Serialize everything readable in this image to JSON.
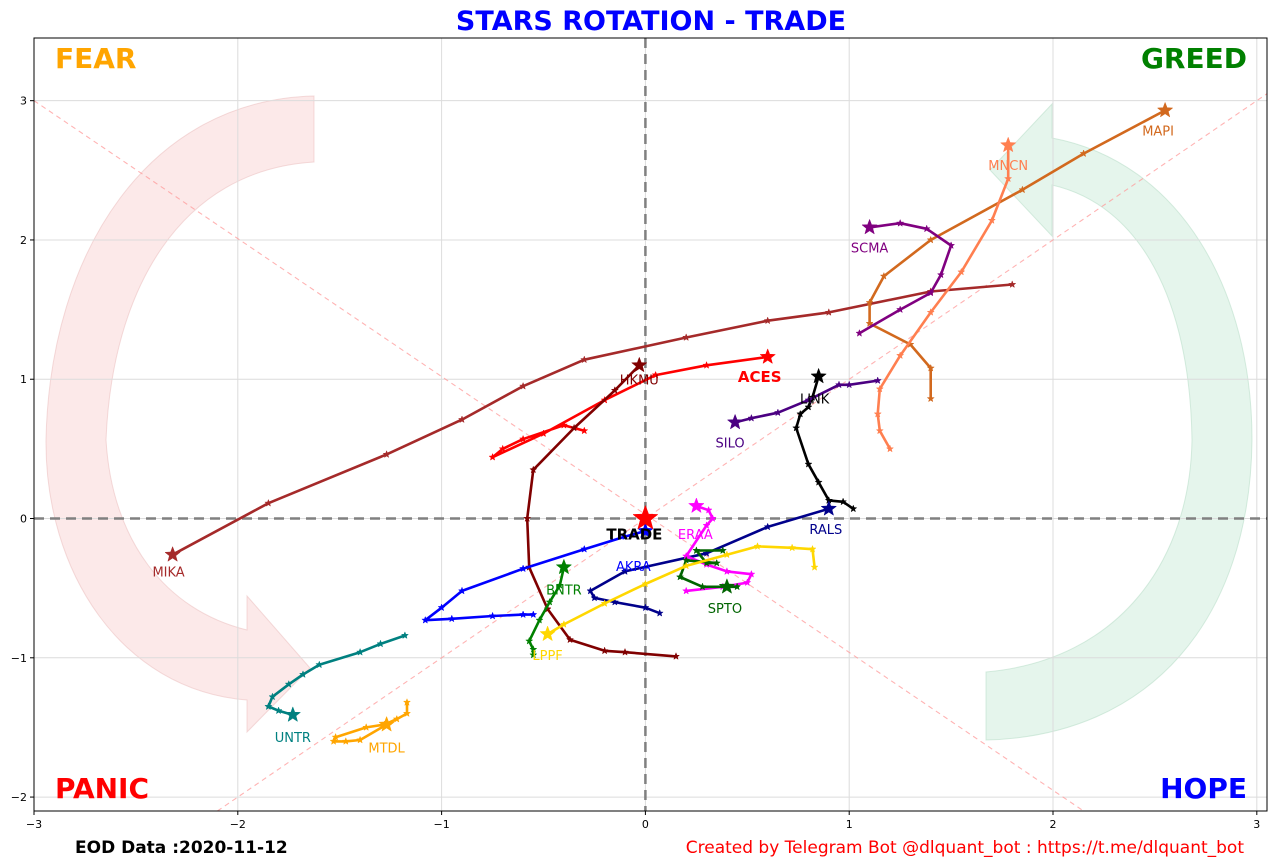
{
  "chart_data": {
    "type": "line",
    "title": "STARS ROTATION - TRADE",
    "xlim": [
      -3,
      3.05
    ],
    "ylim": [
      -2.1,
      3.45
    ],
    "x_ticks": [
      -3,
      -2,
      -1,
      0,
      1,
      2,
      3
    ],
    "y_ticks": [
      -2,
      -1,
      0,
      1,
      2,
      3
    ],
    "grid": true,
    "quadrants": {
      "top_left": "FEAR",
      "top_right": "GREED",
      "bottom_left": "PANIC",
      "bottom_right": "HOPE"
    },
    "center_label": "TRADE",
    "series": [
      {
        "name": "MIKA",
        "color": "#a52a2a",
        "points": [
          [
            1.8,
            1.68
          ],
          [
            1.4,
            1.63
          ],
          [
            0.9,
            1.48
          ],
          [
            0.6,
            1.42
          ],
          [
            0.2,
            1.3
          ],
          [
            -0.3,
            1.14
          ],
          [
            -0.6,
            0.95
          ],
          [
            -0.9,
            0.71
          ],
          [
            -1.27,
            0.46
          ],
          [
            -1.85,
            0.11
          ],
          [
            -2.32,
            -0.26
          ]
        ]
      },
      {
        "name": "MAPI",
        "color": "#d2691e",
        "points": [
          [
            1.4,
            0.86
          ],
          [
            1.4,
            1.08
          ],
          [
            1.3,
            1.25
          ],
          [
            1.1,
            1.4
          ],
          [
            1.1,
            1.55
          ],
          [
            1.17,
            1.74
          ],
          [
            1.4,
            2.0
          ],
          [
            1.85,
            2.36
          ],
          [
            2.15,
            2.62
          ],
          [
            2.55,
            2.93
          ]
        ]
      },
      {
        "name": "MNCN",
        "color": "#ff7f50",
        "points": [
          [
            1.2,
            0.5
          ],
          [
            1.15,
            0.63
          ],
          [
            1.14,
            0.75
          ],
          [
            1.15,
            0.93
          ],
          [
            1.25,
            1.17
          ],
          [
            1.4,
            1.48
          ],
          [
            1.55,
            1.77
          ],
          [
            1.7,
            2.14
          ],
          [
            1.78,
            2.44
          ],
          [
            1.78,
            2.68
          ]
        ]
      },
      {
        "name": "SCMA",
        "color": "#800080",
        "points": [
          [
            1.05,
            1.33
          ],
          [
            1.25,
            1.5
          ],
          [
            1.4,
            1.62
          ],
          [
            1.45,
            1.75
          ],
          [
            1.5,
            1.96
          ],
          [
            1.38,
            2.08
          ],
          [
            1.25,
            2.12
          ],
          [
            1.1,
            2.09
          ]
        ]
      },
      {
        "name": "ACES",
        "color": "#ff0000",
        "points": [
          [
            -0.3,
            0.63
          ],
          [
            -0.4,
            0.67
          ],
          [
            -0.6,
            0.57
          ],
          [
            -0.7,
            0.5
          ],
          [
            -0.75,
            0.44
          ],
          [
            -0.5,
            0.61
          ],
          [
            -0.2,
            0.85
          ],
          [
            0.05,
            1.03
          ],
          [
            0.3,
            1.1
          ],
          [
            0.6,
            1.16
          ]
        ]
      },
      {
        "name": "HKMU",
        "color": "#800000",
        "points": [
          [
            0.15,
            -0.99
          ],
          [
            -0.1,
            -0.96
          ],
          [
            -0.2,
            -0.95
          ],
          [
            -0.37,
            -0.87
          ],
          [
            -0.48,
            -0.65
          ],
          [
            -0.57,
            -0.35
          ],
          [
            -0.58,
            0.0
          ],
          [
            -0.55,
            0.35
          ],
          [
            -0.35,
            0.65
          ],
          [
            -0.15,
            0.92
          ],
          [
            -0.03,
            1.1
          ]
        ]
      },
      {
        "name": "LINK",
        "color": "#000000",
        "points": [
          [
            1.02,
            0.07
          ],
          [
            0.97,
            0.12
          ],
          [
            0.9,
            0.13
          ],
          [
            0.85,
            0.26
          ],
          [
            0.8,
            0.39
          ],
          [
            0.74,
            0.65
          ],
          [
            0.76,
            0.75
          ],
          [
            0.8,
            0.8
          ],
          [
            0.82,
            0.87
          ],
          [
            0.85,
            1.02
          ]
        ]
      },
      {
        "name": "SILO",
        "color": "#4b0082",
        "points": [
          [
            1.14,
            0.99
          ],
          [
            1.0,
            0.96
          ],
          [
            0.95,
            0.96
          ],
          [
            0.8,
            0.85
          ],
          [
            0.65,
            0.76
          ],
          [
            0.52,
            0.72
          ],
          [
            0.44,
            0.69
          ]
        ]
      },
      {
        "name": "RALS",
        "color": "#00008b",
        "points": [
          [
            0.07,
            -0.68
          ],
          [
            0.0,
            -0.64
          ],
          [
            -0.15,
            -0.6
          ],
          [
            -0.25,
            -0.57
          ],
          [
            -0.27,
            -0.52
          ],
          [
            -0.1,
            -0.38
          ],
          [
            0.3,
            -0.25
          ],
          [
            0.6,
            -0.06
          ],
          [
            0.9,
            0.07
          ]
        ]
      },
      {
        "name": "AKRA",
        "color": "#0000ff",
        "points": [
          [
            -0.55,
            -0.69
          ],
          [
            -0.6,
            -0.69
          ],
          [
            -0.75,
            -0.7
          ],
          [
            -0.95,
            -0.72
          ],
          [
            -1.08,
            -0.73
          ],
          [
            -1.0,
            -0.64
          ],
          [
            -0.9,
            -0.52
          ],
          [
            -0.6,
            -0.36
          ],
          [
            -0.3,
            -0.22
          ],
          [
            -0.1,
            -0.13
          ],
          [
            0.0,
            -0.09
          ]
        ]
      },
      {
        "name": "ERAA",
        "color": "#ff00ff",
        "points": [
          [
            0.2,
            -0.52
          ],
          [
            0.38,
            -0.49
          ],
          [
            0.5,
            -0.46
          ],
          [
            0.52,
            -0.4
          ],
          [
            0.4,
            -0.38
          ],
          [
            0.3,
            -0.33
          ],
          [
            0.2,
            -0.27
          ],
          [
            0.3,
            -0.05
          ],
          [
            0.33,
            0.0
          ],
          [
            0.31,
            0.06
          ],
          [
            0.25,
            0.09
          ]
        ]
      },
      {
        "name": "SPTO",
        "color": "#006400",
        "points": [
          [
            0.38,
            -0.23
          ],
          [
            0.25,
            -0.23
          ],
          [
            0.3,
            -0.32
          ],
          [
            0.35,
            -0.32
          ],
          [
            0.2,
            -0.3
          ],
          [
            0.17,
            -0.42
          ],
          [
            0.28,
            -0.49
          ],
          [
            0.45,
            -0.49
          ],
          [
            0.4,
            -0.49
          ]
        ]
      },
      {
        "name": "BNTR",
        "color": "#008000",
        "points": [
          [
            -0.55,
            -0.98
          ],
          [
            -0.55,
            -0.94
          ],
          [
            -0.57,
            -0.88
          ],
          [
            -0.52,
            -0.73
          ],
          [
            -0.47,
            -0.6
          ],
          [
            -0.42,
            -0.48
          ],
          [
            -0.4,
            -0.35
          ]
        ]
      },
      {
        "name": "LPPF",
        "color": "#ffd700",
        "points": [
          [
            0.83,
            -0.35
          ],
          [
            0.82,
            -0.22
          ],
          [
            0.72,
            -0.21
          ],
          [
            0.55,
            -0.2
          ],
          [
            0.4,
            -0.26
          ],
          [
            0.2,
            -0.34
          ],
          [
            0.0,
            -0.47
          ],
          [
            -0.2,
            -0.61
          ],
          [
            -0.4,
            -0.76
          ],
          [
            -0.48,
            -0.83
          ]
        ]
      },
      {
        "name": "UNTR",
        "color": "#008080",
        "points": [
          [
            -1.18,
            -0.84
          ],
          [
            -1.3,
            -0.9
          ],
          [
            -1.4,
            -0.96
          ],
          [
            -1.6,
            -1.05
          ],
          [
            -1.68,
            -1.12
          ],
          [
            -1.75,
            -1.19
          ],
          [
            -1.83,
            -1.28
          ],
          [
            -1.85,
            -1.35
          ],
          [
            -1.8,
            -1.38
          ],
          [
            -1.73,
            -1.41
          ]
        ]
      },
      {
        "name": "MTDL",
        "color": "#ffa500",
        "points": [
          [
            -1.17,
            -1.32
          ],
          [
            -1.17,
            -1.4
          ],
          [
            -1.22,
            -1.44
          ],
          [
            -1.28,
            -1.48
          ],
          [
            -1.37,
            -1.5
          ],
          [
            -1.52,
            -1.57
          ],
          [
            -1.53,
            -1.6
          ],
          [
            -1.47,
            -1.6
          ],
          [
            -1.4,
            -1.59
          ],
          [
            -1.27,
            -1.48
          ]
        ]
      }
    ]
  },
  "footer": {
    "eod": "EOD Data :2020-11-12",
    "credit": "Created by Telegram Bot @dlquant_bot : https://t.me/dlquant_bot"
  }
}
